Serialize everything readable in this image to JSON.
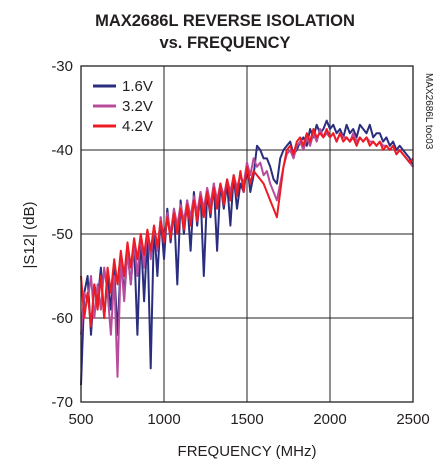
{
  "chart_data": {
    "type": "line",
    "title_line1": "MAX2686L REVERSE ISOLATION",
    "title_line2": "vs. FREQUENCY",
    "xlabel": "FREQUENCY (MHz)",
    "ylabel": "|S12| (dB)",
    "side_label": "MAX2686L toc03",
    "xlim": [
      500,
      2500
    ],
    "ylim": [
      -70,
      -30
    ],
    "xticks": [
      500,
      1000,
      1500,
      2000,
      2500
    ],
    "yticks": [
      -30,
      -40,
      -50,
      -60,
      -70
    ],
    "grid": true,
    "legend_position": "top-left",
    "colors": {
      "axis": "#231f20",
      "grid": "#231f20"
    },
    "series": [
      {
        "name": "1.6V",
        "color": "#2b2d7e",
        "x": [
          500,
          520,
          540,
          560,
          580,
          600,
          620,
          640,
          660,
          680,
          700,
          720,
          740,
          760,
          780,
          800,
          820,
          840,
          860,
          880,
          900,
          920,
          940,
          960,
          980,
          1000,
          1020,
          1040,
          1060,
          1080,
          1100,
          1120,
          1140,
          1160,
          1180,
          1200,
          1220,
          1240,
          1260,
          1280,
          1300,
          1320,
          1340,
          1360,
          1380,
          1400,
          1420,
          1440,
          1460,
          1480,
          1500,
          1520,
          1540,
          1560,
          1580,
          1600,
          1620,
          1640,
          1660,
          1680,
          1700,
          1720,
          1740,
          1760,
          1780,
          1800,
          1820,
          1840,
          1860,
          1880,
          1900,
          1920,
          1940,
          1960,
          1980,
          2000,
          2020,
          2040,
          2060,
          2080,
          2100,
          2120,
          2140,
          2160,
          2180,
          2200,
          2220,
          2240,
          2260,
          2280,
          2300,
          2320,
          2340,
          2360,
          2380,
          2400,
          2420,
          2440,
          2460,
          2480,
          2500
        ],
        "y": [
          -68,
          -57,
          -55,
          -62,
          -56,
          -58,
          -54,
          -60,
          -55,
          -59,
          -54,
          -62,
          -53,
          -57,
          -52,
          -56,
          -51,
          -62,
          -50,
          -58,
          -50,
          -66,
          -49,
          -55,
          -48,
          -53,
          -47,
          -51,
          -47,
          -56,
          -46,
          -50,
          -46,
          -52,
          -45,
          -49,
          -45,
          -55,
          -45,
          -48,
          -44,
          -52,
          -44,
          -47,
          -44,
          -49,
          -43,
          -47,
          -44,
          -45,
          -41.5,
          -45,
          -43,
          -39.5,
          -40,
          -41,
          -41,
          -42,
          -43.5,
          -44,
          -41,
          -40,
          -39.5,
          -39,
          -40.5,
          -40,
          -39,
          -38.5,
          -39.5,
          -37.5,
          -38.5,
          -37,
          -38,
          -37.5,
          -36.5,
          -37.5,
          -37,
          -38,
          -37.5,
          -38.5,
          -37,
          -38,
          -37.5,
          -38.5,
          -37,
          -37.5,
          -38,
          -37,
          -38.5,
          -38,
          -38,
          -39,
          -38.5,
          -39.5,
          -39,
          -40,
          -39.5,
          -40,
          -40.5,
          -41,
          -42
        ]
      },
      {
        "name": "3.2V",
        "color": "#b84c9c",
        "x": [
          500,
          520,
          540,
          560,
          580,
          600,
          620,
          640,
          660,
          680,
          700,
          720,
          740,
          760,
          780,
          800,
          820,
          840,
          860,
          880,
          900,
          920,
          940,
          960,
          980,
          1000,
          1020,
          1040,
          1060,
          1080,
          1100,
          1120,
          1140,
          1160,
          1180,
          1200,
          1220,
          1240,
          1260,
          1280,
          1300,
          1320,
          1340,
          1360,
          1380,
          1400,
          1420,
          1440,
          1460,
          1480,
          1500,
          1520,
          1540,
          1560,
          1580,
          1600,
          1620,
          1640,
          1660,
          1680,
          1700,
          1720,
          1740,
          1760,
          1780,
          1800,
          1820,
          1840,
          1860,
          1880,
          1900,
          1920,
          1940,
          1960,
          1980,
          2000,
          2020,
          2040,
          2060,
          2080,
          2100,
          2120,
          2140,
          2160,
          2180,
          2200,
          2220,
          2240,
          2260,
          2280,
          2300,
          2320,
          2340,
          2360,
          2380,
          2400,
          2420,
          2440,
          2460,
          2480,
          2500
        ],
        "y": [
          -62,
          -57,
          -58,
          -55,
          -60,
          -56,
          -59,
          -54,
          -57,
          -62,
          -55,
          -67,
          -53,
          -58,
          -52,
          -56,
          -51,
          -55,
          -50,
          -54,
          -49.5,
          -53,
          -49,
          -52,
          -48,
          -51,
          -47.5,
          -50,
          -47,
          -49,
          -46.5,
          -48.5,
          -46,
          -48,
          -45.5,
          -47.5,
          -45,
          -47,
          -44.5,
          -46.5,
          -44,
          -46,
          -44,
          -45.5,
          -43.5,
          -45,
          -43,
          -44.5,
          -43,
          -44,
          -41.5,
          -43,
          -41,
          -42,
          -41.5,
          -43,
          -42.5,
          -44,
          -45,
          -46,
          -44,
          -42,
          -40.5,
          -40,
          -41,
          -39.5,
          -39,
          -40,
          -38.5,
          -39.5,
          -38,
          -39,
          -37.5,
          -38.5,
          -38,
          -38.5,
          -38,
          -39,
          -38,
          -38.5,
          -38.5,
          -39,
          -38,
          -39,
          -38.5,
          -39,
          -38.5,
          -39,
          -39,
          -39.5,
          -39,
          -39.5,
          -39.5,
          -40,
          -39.5,
          -40.5,
          -40,
          -40.5,
          -41,
          -41.5,
          -42
        ]
      },
      {
        "name": "4.2V",
        "color": "#ed1c24",
        "x": [
          500,
          520,
          540,
          560,
          580,
          600,
          620,
          640,
          660,
          680,
          700,
          720,
          740,
          760,
          780,
          800,
          820,
          840,
          860,
          880,
          900,
          920,
          940,
          960,
          980,
          1000,
          1020,
          1040,
          1060,
          1080,
          1100,
          1120,
          1140,
          1160,
          1180,
          1200,
          1220,
          1240,
          1260,
          1280,
          1300,
          1320,
          1340,
          1360,
          1380,
          1400,
          1420,
          1440,
          1460,
          1480,
          1500,
          1520,
          1540,
          1560,
          1580,
          1600,
          1620,
          1640,
          1660,
          1680,
          1700,
          1720,
          1740,
          1760,
          1780,
          1800,
          1820,
          1840,
          1860,
          1880,
          1900,
          1920,
          1940,
          1960,
          1980,
          2000,
          2020,
          2040,
          2060,
          2080,
          2100,
          2120,
          2140,
          2160,
          2180,
          2200,
          2220,
          2240,
          2260,
          2280,
          2300,
          2320,
          2340,
          2360,
          2380,
          2400,
          2420,
          2440,
          2460,
          2480,
          2500
        ],
        "y": [
          -55,
          -60,
          -57,
          -61,
          -56,
          -59,
          -55,
          -60,
          -54,
          -57,
          -53,
          -56,
          -52,
          -55,
          -51,
          -54,
          -50.5,
          -53,
          -50,
          -52.5,
          -49.5,
          -52,
          -49,
          -51.5,
          -48.5,
          -51,
          -48,
          -50.5,
          -47.5,
          -50,
          -47,
          -49.5,
          -46.5,
          -49,
          -46,
          -48.5,
          -45.5,
          -48,
          -45,
          -47.5,
          -44.5,
          -47,
          -44,
          -46.5,
          -43.5,
          -46,
          -43,
          -45.5,
          -42.5,
          -45,
          -42,
          -44,
          -42.5,
          -43,
          -43.5,
          -44,
          -45,
          -46,
          -47,
          -48,
          -45,
          -42,
          -40,
          -39.5,
          -40.5,
          -39,
          -38.5,
          -39.5,
          -38,
          -39,
          -37.5,
          -38.5,
          -38,
          -38.5,
          -37.5,
          -38.5,
          -38,
          -39,
          -38,
          -39,
          -38.5,
          -39,
          -38.5,
          -39.5,
          -38.5,
          -39,
          -38.5,
          -39.5,
          -39,
          -39.5,
          -39,
          -40,
          -39.5,
          -40,
          -39.5,
          -40.5,
          -40,
          -40.5,
          -41,
          -41.5,
          -41
        ]
      }
    ]
  }
}
